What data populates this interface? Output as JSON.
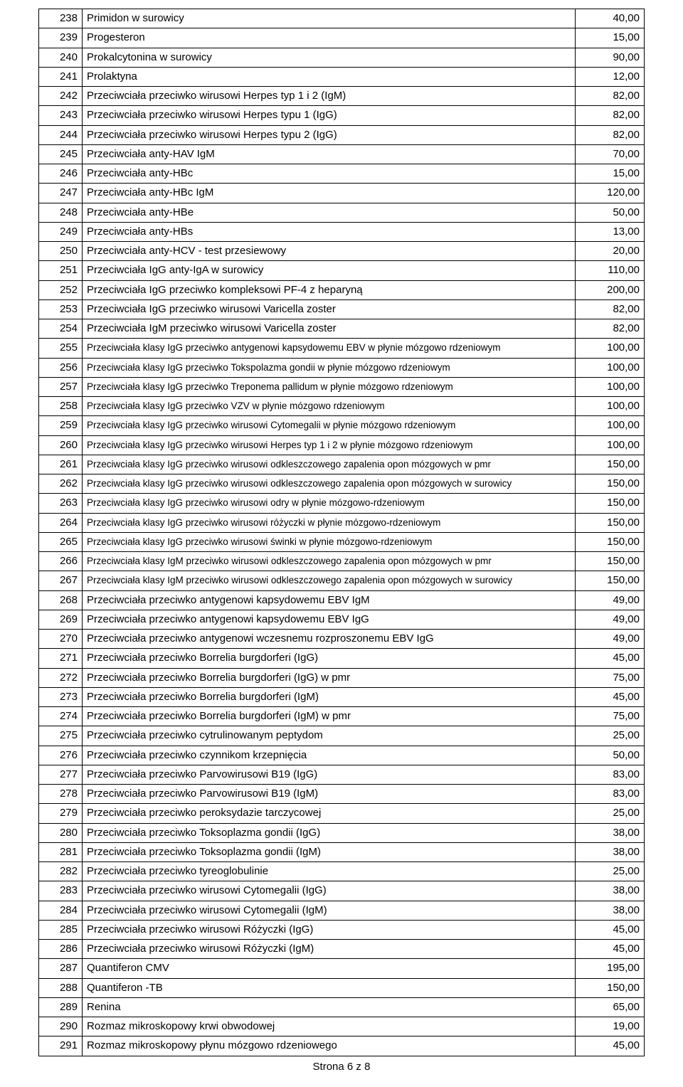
{
  "footer": "Strona 6 z 8",
  "table": {
    "col_widths": {
      "num": 48,
      "price": 84
    },
    "border_color": "#000000",
    "background_color": "#ffffff",
    "font_size_normal": 15,
    "font_size_small": 13.5,
    "rows": [
      {
        "n": "238",
        "desc": "Primidon w surowicy",
        "price": "40,00",
        "small": false
      },
      {
        "n": "239",
        "desc": "Progesteron",
        "price": "15,00",
        "small": false
      },
      {
        "n": "240",
        "desc": "Prokalcytonina w surowicy",
        "price": "90,00",
        "small": false
      },
      {
        "n": "241",
        "desc": "Prolaktyna",
        "price": "12,00",
        "small": false
      },
      {
        "n": "242",
        "desc": "Przeciwciała  przeciwko wirusowi Herpes typ 1 i 2  (IgM)",
        "price": "82,00",
        "small": false
      },
      {
        "n": "243",
        "desc": "Przeciwciała  przeciwko wirusowi Herpes typu 1 (IgG)",
        "price": "82,00",
        "small": false
      },
      {
        "n": "244",
        "desc": "Przeciwciała  przeciwko wirusowi Herpes typu 2 (IgG)",
        "price": "82,00",
        "small": false
      },
      {
        "n": "245",
        "desc": "Przeciwciała anty-HAV IgM",
        "price": "70,00",
        "small": false
      },
      {
        "n": "246",
        "desc": "Przeciwciała anty-HBc",
        "price": "15,00",
        "small": false
      },
      {
        "n": "247",
        "desc": "Przeciwciała anty-HBc IgM",
        "price": "120,00",
        "small": false
      },
      {
        "n": "248",
        "desc": "Przeciwciała anty-HBe",
        "price": "50,00",
        "small": false
      },
      {
        "n": "249",
        "desc": "Przeciwciała anty-HBs",
        "price": "13,00",
        "small": false
      },
      {
        "n": "250",
        "desc": "Przeciwciała anty-HCV - test przesiewowy",
        "price": "20,00",
        "small": false
      },
      {
        "n": "251",
        "desc": "Przeciwciała IgG anty-IgA w surowicy",
        "price": "110,00",
        "small": false
      },
      {
        "n": "252",
        "desc": "Przeciwciała IgG przeciwko kompleksowi PF-4 z heparyną",
        "price": "200,00",
        "small": false
      },
      {
        "n": "253",
        "desc": "Przeciwciała IgG przeciwko wirusowi Varicella zoster",
        "price": "82,00",
        "small": false
      },
      {
        "n": "254",
        "desc": "Przeciwciała IgM przeciwko wirusowi Varicella zoster",
        "price": "82,00",
        "small": false
      },
      {
        "n": "255",
        "desc": "Przeciwciała klasy IgG przeciwko antygenowi kapsydowemu EBV  w płynie mózgowo rdzeniowym",
        "price": "100,00",
        "small": true
      },
      {
        "n": "256",
        "desc": "Przeciwciała klasy IgG przeciwko Tokspolazma gondii w płynie mózgowo rdzeniowym",
        "price": "100,00",
        "small": true
      },
      {
        "n": "257",
        "desc": "Przeciwciała klasy IgG przeciwko Treponema pallidum w płynie mózgowo rdzeniowym",
        "price": "100,00",
        "small": true
      },
      {
        "n": "258",
        "desc": "Przeciwciała klasy IgG przeciwko VZV w płynie mózgowo rdzeniowym",
        "price": "100,00",
        "small": true
      },
      {
        "n": "259",
        "desc": "Przeciwciała klasy IgG przeciwko wirusowi Cytomegalii w płynie mózgowo rdzeniowym",
        "price": "100,00",
        "small": true
      },
      {
        "n": "260",
        "desc": "Przeciwciała klasy IgG przeciwko wirusowi Herpes typ 1 i 2 w płynie mózgowo rdzeniowym",
        "price": "100,00",
        "small": true
      },
      {
        "n": "261",
        "desc": "Przeciwciała klasy IgG przeciwko wirusowi odkleszczowego zapalenia opon mózgowych w pmr",
        "price": "150,00",
        "small": true
      },
      {
        "n": "262",
        "desc": "Przeciwciała klasy IgG przeciwko wirusowi odkleszczowego zapalenia opon mózgowych w surowicy",
        "price": "150,00",
        "small": true
      },
      {
        "n": "263",
        "desc": "Przeciwciała klasy IgG przeciwko wirusowi odry w płynie mózgowo-rdzeniowym",
        "price": "150,00",
        "small": true
      },
      {
        "n": "264",
        "desc": "Przeciwciała klasy IgG przeciwko wirusowi różyczki w płynie mózgowo-rdzeniowym",
        "price": "150,00",
        "small": true
      },
      {
        "n": "265",
        "desc": "Przeciwciała klasy IgG przeciwko wirusowi świnki w płynie mózgowo-rdzeniowym",
        "price": "150,00",
        "small": true
      },
      {
        "n": "266",
        "desc": "Przeciwciała klasy IgM przeciwko wirusowi odkleszczowego zapalenia opon mózgowych w pmr",
        "price": "150,00",
        "small": true
      },
      {
        "n": "267",
        "desc": "Przeciwciała klasy IgM przeciwko wirusowi odkleszczowego zapalenia opon mózgowych w surowicy",
        "price": "150,00",
        "small": true
      },
      {
        "n": "268",
        "desc": "Przeciwciała przeciwko antygenowi kapsydowemu  EBV IgM",
        "price": "49,00",
        "small": false
      },
      {
        "n": "269",
        "desc": "Przeciwciała przeciwko antygenowi kapsydowemu EBV IgG",
        "price": "49,00",
        "small": false
      },
      {
        "n": "270",
        "desc": "Przeciwciała przeciwko antygenowi wczesnemu rozproszonemu EBV IgG",
        "price": "49,00",
        "small": false
      },
      {
        "n": "271",
        "desc": "Przeciwciała przeciwko Borrelia burgdorferi (IgG)",
        "price": "45,00",
        "small": false
      },
      {
        "n": "272",
        "desc": "Przeciwciała przeciwko Borrelia burgdorferi (IgG) w pmr",
        "price": "75,00",
        "small": false
      },
      {
        "n": "273",
        "desc": "Przeciwciała przeciwko Borrelia burgdorferi (IgM)",
        "price": "45,00",
        "small": false
      },
      {
        "n": "274",
        "desc": "Przeciwciała przeciwko Borrelia burgdorferi (IgM) w pmr",
        "price": "75,00",
        "small": false
      },
      {
        "n": "275",
        "desc": "Przeciwciała przeciwko cytrulinowanym peptydom",
        "price": "25,00",
        "small": false
      },
      {
        "n": "276",
        "desc": "Przeciwciała przeciwko czynnikom krzepnięcia",
        "price": "50,00",
        "small": false
      },
      {
        "n": "277",
        "desc": "Przeciwciała przeciwko Parvowirusowi B19 (IgG)",
        "price": "83,00",
        "small": false
      },
      {
        "n": "278",
        "desc": "Przeciwciała przeciwko Parvowirusowi B19 (IgM)",
        "price": "83,00",
        "small": false
      },
      {
        "n": "279",
        "desc": "Przeciwciała przeciwko peroksydazie tarczycowej",
        "price": "25,00",
        "small": false
      },
      {
        "n": "280",
        "desc": "Przeciwciała przeciwko Toksoplazma gondii (IgG)",
        "price": "38,00",
        "small": false
      },
      {
        "n": "281",
        "desc": "Przeciwciała przeciwko Toksoplazma gondii (IgM)",
        "price": "38,00",
        "small": false
      },
      {
        "n": "282",
        "desc": "Przeciwciała przeciwko tyreoglobulinie",
        "price": "25,00",
        "small": false
      },
      {
        "n": "283",
        "desc": "Przeciwciała przeciwko wirusowi Cytomegalii (IgG)",
        "price": "38,00",
        "small": false
      },
      {
        "n": "284",
        "desc": "Przeciwciała przeciwko wirusowi Cytomegalii (IgM)",
        "price": "38,00",
        "small": false
      },
      {
        "n": "285",
        "desc": "Przeciwciała przeciwko wirusowi Różyczki (IgG)",
        "price": "45,00",
        "small": false
      },
      {
        "n": "286",
        "desc": "Przeciwciała przeciwko wirusowi Różyczki (IgM)",
        "price": "45,00",
        "small": false
      },
      {
        "n": "287",
        "desc": "Quantiferon CMV",
        "price": "195,00",
        "small": false
      },
      {
        "n": "288",
        "desc": "Quantiferon -TB",
        "price": "150,00",
        "small": false
      },
      {
        "n": "289",
        "desc": "Renina",
        "price": "65,00",
        "small": false
      },
      {
        "n": "290",
        "desc": "Rozmaz mikroskopowy krwi obwodowej",
        "price": "19,00",
        "small": false
      },
      {
        "n": "291",
        "desc": "Rozmaz mikroskopowy płynu mózgowo rdzeniowego",
        "price": "45,00",
        "small": false
      }
    ]
  }
}
